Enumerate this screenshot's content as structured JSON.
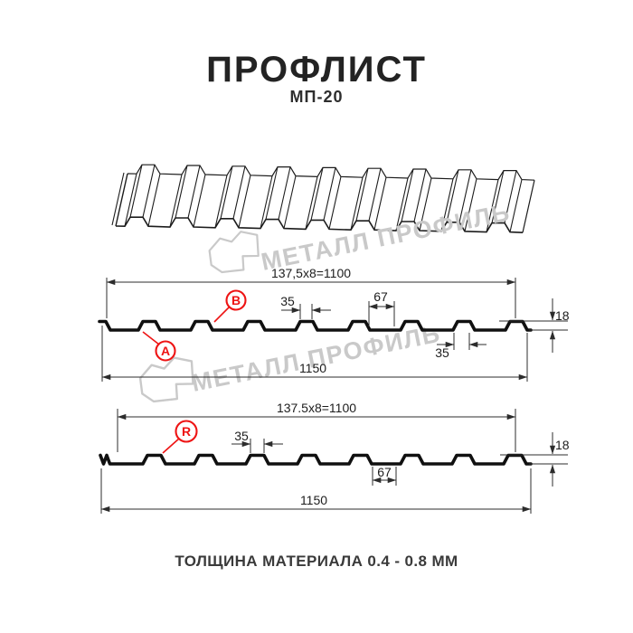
{
  "header": {
    "title": "ПРОФЛИСТ",
    "subtitle": "МП-20"
  },
  "watermark": {
    "brand": "МЕТАЛЛ ПРОФИЛЬ",
    "logo": "metal-profil-house-logo"
  },
  "profile_top": {
    "module_length": "137,5x8=1100",
    "crest_top_width": "35",
    "valley_width": "67",
    "crest_bottom_width": "35",
    "height": "18",
    "total_width": "1150",
    "label_a": "A",
    "label_b": "B"
  },
  "profile_bottom": {
    "module_length": "137.5x8=1100",
    "crest_top_width": "35",
    "valley_width": "67",
    "height": "18",
    "total_width": "1150",
    "label_r": "R"
  },
  "footer": {
    "note": "ТОЛЩИНА МАТЕРИАЛА 0.4 - 0.8 ММ"
  },
  "colors": {
    "accent": "#ee1414",
    "line": "#1c1c1c",
    "dim": "#2c2c2c",
    "watermark": "#c9c9c9"
  }
}
